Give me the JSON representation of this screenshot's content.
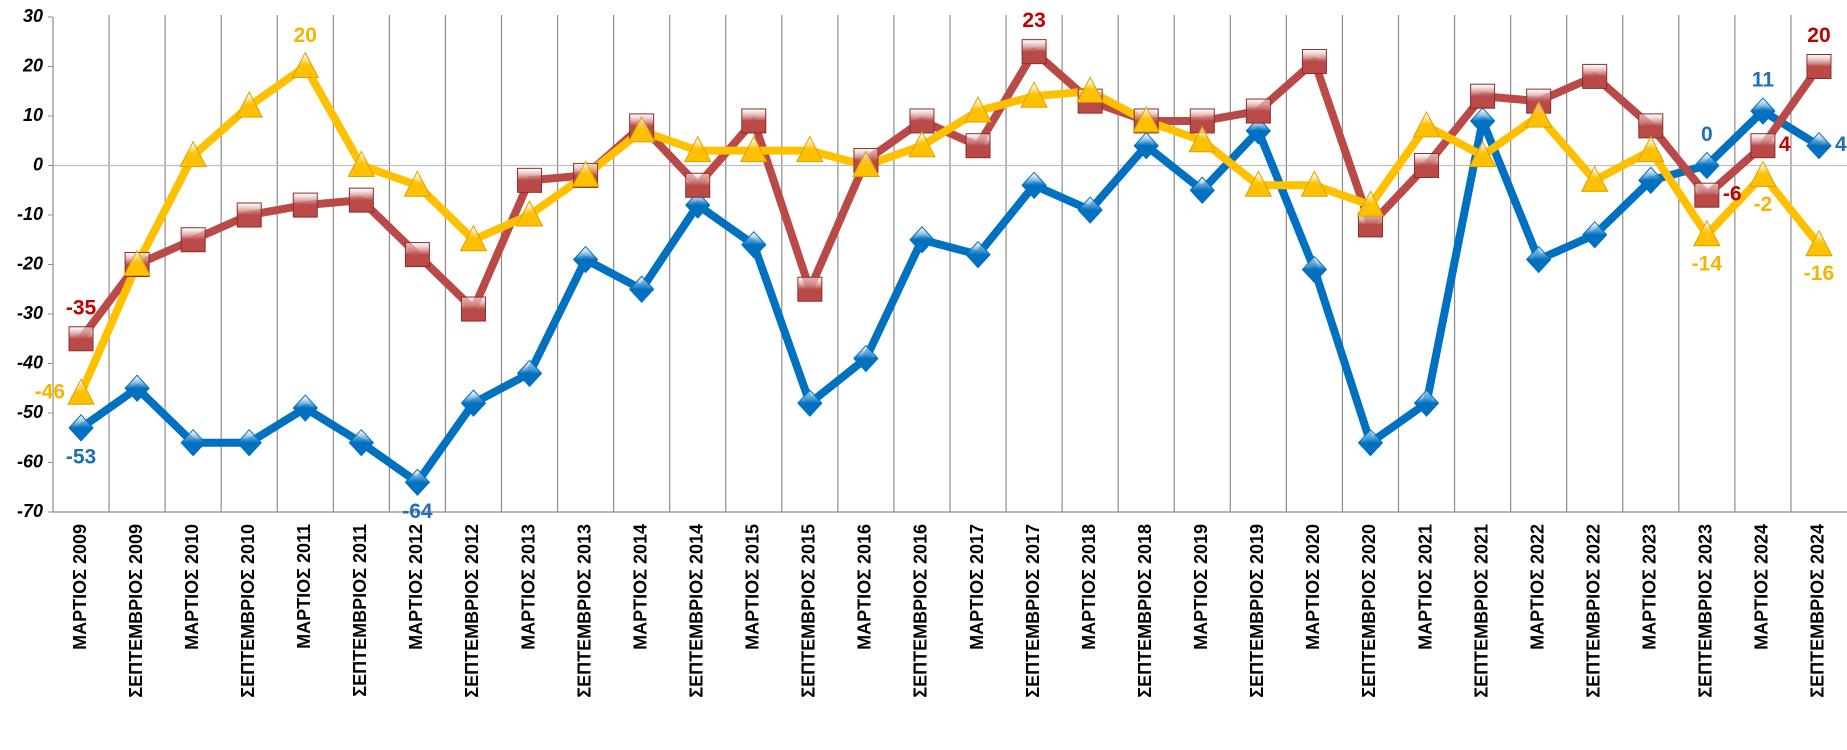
{
  "chart_data": {
    "type": "line",
    "categories": [
      "ΜΑΡΤΙΟΣ 2009",
      "ΣΕΠΤΕΜΒΡΙΟΣ 2009",
      "ΜΑΡΤΙΟΣ 2010",
      "ΣΕΠΤΕΜΒΡΙΟΣ 2010",
      "ΜΑΡΤΙΟΣ 2011",
      "ΣΕΠΤΕΜΒΡΙΟΣ 2011",
      "ΜΑΡΤΙΟΣ 2012",
      "ΣΕΠΤΕΜΒΡΙΟΣ 2012",
      "ΜΑΡΤΙΟΣ 2013",
      "ΣΕΠΤΕΜΒΡΙΟΣ 2013",
      "ΜΑΡΤΙΟΣ 2014",
      "ΣΕΠΤΕΜΒΡΙΟΣ 2014",
      "ΜΑΡΤΙΟΣ 2015",
      "ΣΕΠΤΕΜΒΡΙΟΣ 2015",
      "ΜΑΡΤΙΟΣ 2016",
      "ΣΕΠΤΕΜΒΡΙΟΣ 2016",
      "ΜΑΡΤΙΟΣ 2017",
      "ΣΕΠΤΕΜΒΡΙΟΣ 2017",
      "ΜΑΡΤΙΟΣ 2018",
      "ΣΕΠΤΕΜΒΡΙΟΣ 2018",
      "ΜΑΡΤΙΟΣ 2019",
      "ΣΕΠΤΕΜΒΡΙΟΣ 2019",
      "ΜΑΡΤΙΟΣ 2020",
      "ΣΕΠΤΕΜΒΡΙΟΣ 2020",
      "ΜΑΡΤΙΟΣ 2021",
      "ΣΕΠΤΕΜΒΡΙΟΣ 2021",
      "ΜΑΡΤΙΟΣ 2022",
      "ΣΕΠΤΕΜΒΡΙΟΣ 2022",
      "ΜΑΡΤΙΟΣ 2023",
      "ΣΕΠΤΕΜΒΡΙΟΣ 2023",
      "ΜΑΡΤΙΟΣ 2024",
      "ΣΕΠΤΕΜΒΡΙΟΣ 2024"
    ],
    "series": [
      {
        "color": "#0070c0",
        "label_color": "#1f6fb5",
        "marker": "diamond",
        "values": [
          -53,
          -45,
          -56,
          -56,
          -49,
          -56,
          -64,
          -48,
          -42,
          -19,
          -25,
          -8,
          -16,
          -48,
          -39,
          -15,
          -18,
          -4,
          -9,
          4,
          -5,
          7,
          -21,
          -56,
          -48,
          9,
          -19,
          -14,
          -3,
          0,
          11,
          4
        ],
        "value_labels": [
          "-53",
          null,
          null,
          null,
          null,
          null,
          "-64",
          null,
          null,
          null,
          null,
          null,
          null,
          null,
          null,
          null,
          null,
          null,
          null,
          null,
          null,
          null,
          null,
          null,
          null,
          null,
          null,
          null,
          null,
          "0",
          "11",
          "4"
        ]
      },
      {
        "color": "#b94a48",
        "label_color": "#c00000",
        "marker": "square",
        "values": [
          -35,
          -20,
          -15,
          -10,
          -8,
          -7,
          -18,
          -29,
          -3,
          -2,
          8,
          -4,
          9,
          -25,
          1,
          9,
          4,
          23,
          13,
          9,
          9,
          11,
          21,
          -12,
          0,
          14,
          13,
          18,
          8,
          -6,
          4,
          20
        ],
        "value_labels": [
          "-35",
          null,
          null,
          null,
          null,
          null,
          null,
          null,
          null,
          null,
          null,
          null,
          null,
          null,
          null,
          null,
          null,
          "23",
          null,
          null,
          null,
          null,
          null,
          null,
          null,
          null,
          null,
          null,
          null,
          "-6",
          "4",
          "20"
        ]
      },
      {
        "color": "#ffc000",
        "label_color": "#f5b400",
        "marker": "triangle",
        "values": [
          -46,
          -20,
          2,
          12,
          20,
          0,
          -4,
          -15,
          -10,
          -2,
          7,
          3,
          3,
          3,
          0,
          4,
          11,
          14,
          15,
          9,
          5,
          -4,
          -4,
          -8,
          8,
          2,
          10,
          -3,
          3,
          -14,
          -2,
          -16
        ],
        "value_labels": [
          "-46",
          null,
          null,
          null,
          "20",
          null,
          null,
          null,
          null,
          null,
          null,
          null,
          null,
          null,
          null,
          null,
          null,
          null,
          null,
          null,
          null,
          null,
          null,
          null,
          null,
          null,
          null,
          null,
          null,
          "-14",
          "-2",
          "-16"
        ]
      }
    ],
    "ylim": [
      -70,
      30
    ],
    "yticks": [
      -70,
      -60,
      -50,
      -40,
      -30,
      -20,
      -10,
      0,
      10,
      20,
      30
    ],
    "grid": true
  }
}
